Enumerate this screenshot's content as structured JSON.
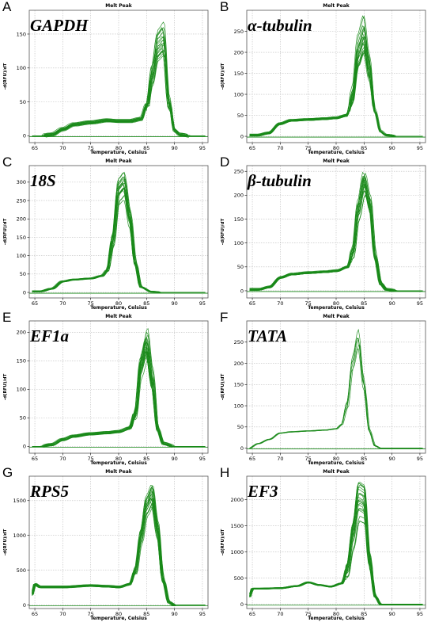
{
  "colors": {
    "curve": "#1a8a1a",
    "baseline": "#1a8a1a",
    "grid": "#bdbdbd",
    "frame": "#555555"
  },
  "chart_data": [
    {
      "type": "line",
      "panel": "A",
      "gene": "GAPDH",
      "title": "Melt Peak",
      "xlabel": "Temperature, Celsius",
      "ylabel": "-d(RFU)/dT",
      "xlim": [
        64,
        96
      ],
      "ylim": [
        -10,
        185
      ],
      "xticks": [
        65,
        70,
        75,
        80,
        85,
        90,
        95
      ],
      "yticks": [
        0,
        50,
        100,
        150
      ],
      "grid": true,
      "series_count": 20,
      "x": [
        64.5,
        66,
        68,
        70,
        72,
        75,
        78,
        80,
        82,
        84,
        85,
        86,
        87,
        88,
        89,
        90,
        91,
        93,
        95
      ],
      "y": [
        0,
        0,
        2,
        10,
        17,
        20,
        23,
        22,
        22,
        25,
        45,
        105,
        155,
        165,
        55,
        8,
        2,
        0,
        0
      ],
      "peak_range": [
        120,
        180
      ],
      "noise": 6
    },
    {
      "type": "line",
      "panel": "B",
      "gene": "α-tubulin",
      "title": "Melt Peak",
      "xlabel": "Temperature, Celsius",
      "ylabel": "-d(RFU)/dT",
      "xlim": [
        64,
        96
      ],
      "ylim": [
        -15,
        300
      ],
      "xticks": [
        65,
        70,
        75,
        80,
        85,
        90,
        95
      ],
      "yticks": [
        0,
        50,
        100,
        150,
        200,
        250
      ],
      "grid": true,
      "series_count": 20,
      "x": [
        64.5,
        66,
        68,
        70,
        72,
        75,
        78,
        80,
        82,
        83,
        84,
        85,
        86,
        87,
        88,
        89,
        91,
        93,
        95
      ],
      "y": [
        3,
        3,
        8,
        30,
        38,
        40,
        42,
        44,
        50,
        100,
        210,
        250,
        170,
        60,
        12,
        3,
        0,
        0,
        0
      ],
      "peak_range": [
        190,
        290
      ],
      "noise": 5
    },
    {
      "type": "line",
      "panel": "C",
      "gene": "18S",
      "title": "Melt Peak",
      "xlabel": "Temperature, Celsius",
      "ylabel": "-d(RFU)/dT",
      "xlim": [
        64,
        96
      ],
      "ylim": [
        -15,
        345
      ],
      "xticks": [
        65,
        70,
        75,
        80,
        85,
        90,
        95
      ],
      "yticks": [
        0,
        50,
        100,
        150,
        200,
        250,
        300
      ],
      "grid": true,
      "series_count": 20,
      "x": [
        64.5,
        66,
        68,
        70,
        72,
        75,
        77,
        78,
        79,
        80,
        81,
        82,
        83,
        84,
        86,
        88,
        90,
        95
      ],
      "y": [
        3,
        3,
        10,
        30,
        35,
        38,
        45,
        60,
        140,
        270,
        285,
        200,
        80,
        15,
        2,
        0,
        0,
        0
      ],
      "peak_range": [
        250,
        330
      ],
      "noise": 4
    },
    {
      "type": "line",
      "panel": "D",
      "gene": "β-tubulin",
      "title": "Melt Peak",
      "xlabel": "Temperature, Celsius",
      "ylabel": "-d(RFU)/dT",
      "xlim": [
        64,
        96
      ],
      "ylim": [
        -15,
        262
      ],
      "xticks": [
        65,
        70,
        75,
        80,
        85,
        90,
        95
      ],
      "yticks": [
        0,
        50,
        100,
        150,
        200,
        250
      ],
      "grid": true,
      "series_count": 20,
      "x": [
        64.5,
        66,
        68,
        70,
        72,
        75,
        78,
        80,
        82,
        83,
        84,
        85,
        86,
        87,
        88,
        89,
        91,
        93,
        95
      ],
      "y": [
        3,
        3,
        8,
        28,
        35,
        38,
        40,
        42,
        50,
        80,
        170,
        225,
        180,
        70,
        15,
        3,
        0,
        0,
        0
      ],
      "peak_range": [
        200,
        250
      ],
      "noise": 5
    },
    {
      "type": "line",
      "panel": "E",
      "gene": "EF1a",
      "title": "Melt Peak",
      "xlabel": "Temperature, Celsius",
      "ylabel": "-d(RFU)/dT",
      "xlim": [
        64,
        96
      ],
      "ylim": [
        -12,
        220
      ],
      "xticks": [
        65,
        70,
        75,
        80,
        85,
        90,
        95
      ],
      "yticks": [
        0,
        50,
        100,
        150,
        200
      ],
      "grid": true,
      "series_count": 22,
      "x": [
        64.5,
        66,
        68,
        70,
        72,
        75,
        78,
        80,
        82,
        83,
        84,
        85,
        86,
        87,
        88,
        90,
        92,
        95
      ],
      "y": [
        0,
        0,
        3,
        12,
        18,
        22,
        24,
        26,
        32,
        60,
        150,
        185,
        120,
        30,
        5,
        0,
        0,
        0
      ],
      "peak_range": [
        150,
        210
      ],
      "noise": 5
    },
    {
      "type": "line",
      "panel": "F",
      "gene": "TATA",
      "title": "Melt Peak",
      "xlabel": "Temperature, Celsius",
      "ylabel": "-d(RFU)/dT",
      "xlim": [
        64,
        96
      ],
      "ylim": [
        -12,
        300
      ],
      "xticks": [
        65,
        70,
        75,
        80,
        85,
        90,
        95
      ],
      "yticks": [
        0,
        50,
        100,
        150,
        200,
        250
      ],
      "grid": true,
      "series_count": 6,
      "x": [
        64.5,
        66,
        68,
        70,
        72,
        75,
        78,
        80,
        81,
        82,
        83,
        84,
        85,
        86,
        87,
        88,
        90,
        95
      ],
      "y": [
        0,
        10,
        20,
        35,
        38,
        40,
        42,
        45,
        55,
        100,
        200,
        255,
        150,
        40,
        5,
        0,
        0,
        0
      ],
      "peak_range": [
        235,
        280
      ],
      "noise": 3
    },
    {
      "type": "line",
      "panel": "G",
      "gene": "RPS5",
      "title": "Melt Peak",
      "xlabel": "Temperature, Celsius",
      "ylabel": "-d(RFU)/dT",
      "xlim": [
        64,
        96
      ],
      "ylim": [
        -50,
        1850
      ],
      "xticks": [
        65,
        70,
        75,
        80,
        85,
        90,
        95
      ],
      "yticks": [
        0,
        500,
        1000,
        1500
      ],
      "grid": true,
      "series_count": 20,
      "x": [
        64.5,
        65,
        66,
        70,
        75,
        78,
        80,
        82,
        83,
        84,
        85,
        86,
        87,
        88,
        89,
        90,
        92,
        95
      ],
      "y": [
        150,
        300,
        260,
        260,
        280,
        270,
        260,
        300,
        500,
        1000,
        1450,
        1600,
        1100,
        350,
        40,
        0,
        0,
        0
      ],
      "peak_range": [
        1400,
        1750
      ],
      "noise": 30
    },
    {
      "type": "line",
      "panel": "H",
      "gene": "EF3",
      "title": "Melt Peak",
      "xlabel": "Temperature, Celsius",
      "ylabel": "-d(RFU)/dT",
      "xlim": [
        64,
        96
      ],
      "ylim": [
        -80,
        2450
      ],
      "xticks": [
        65,
        70,
        75,
        80,
        85,
        90,
        95
      ],
      "yticks": [
        0,
        500,
        1000,
        1500,
        2000
      ],
      "grid": true,
      "series_count": 22,
      "x": [
        64.5,
        65,
        66,
        70,
        73,
        75,
        77,
        79,
        81,
        82,
        83,
        84,
        85,
        86,
        87,
        88,
        90,
        95
      ],
      "y": [
        150,
        300,
        300,
        310,
        350,
        420,
        370,
        340,
        400,
        650,
        1300,
        1950,
        1900,
        800,
        150,
        0,
        0,
        0
      ],
      "peak_range": [
        1500,
        2350
      ],
      "noise": 25
    }
  ]
}
